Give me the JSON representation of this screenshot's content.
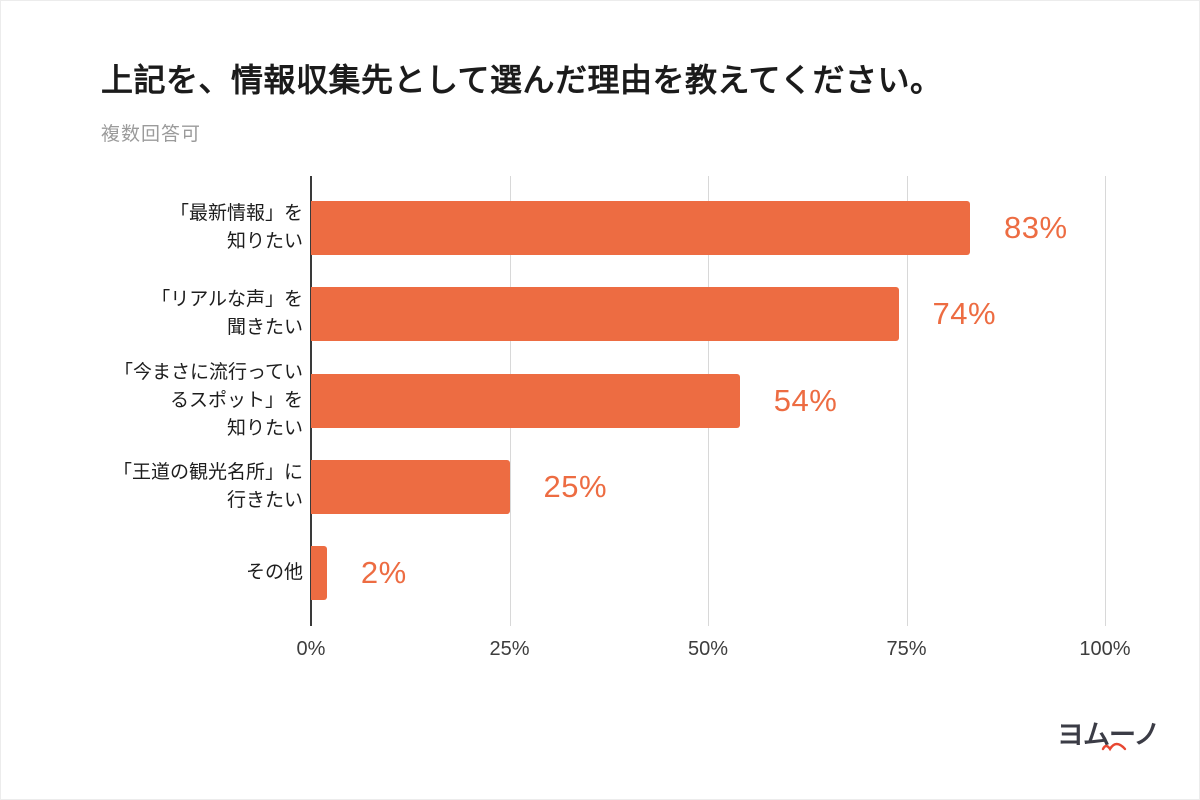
{
  "page": {
    "title": "上記を、情報収集先として選んだ理由を教えてください。",
    "subtitle": "複数回答可"
  },
  "chart_data": {
    "type": "bar",
    "orientation": "horizontal",
    "title": "上記を、情報収集先として選んだ理由を教えてください。",
    "subtitle": "複数回答可",
    "categories": [
      "「最新情報」を知りたい",
      "「リアルな声」を聞きたい",
      "「今まさに流行っているスポット」を知りたい",
      "「王道の観光名所」に行きたい",
      "その他"
    ],
    "category_lines": [
      [
        "「最新情報」を",
        "知りたい"
      ],
      [
        "「リアルな声」を",
        "聞きたい"
      ],
      [
        "「今まさに流行ってい",
        "るスポット」を",
        "知りたい"
      ],
      [
        "「王道の観光名所」に",
        "行きたい"
      ],
      [
        "その他"
      ]
    ],
    "values": [
      83,
      74,
      54,
      25,
      2
    ],
    "value_labels": [
      "83%",
      "74%",
      "54%",
      "25%",
      "2%"
    ],
    "x_ticks": [
      "0%",
      "25%",
      "50%",
      "75%",
      "100%"
    ],
    "x_tick_values": [
      0,
      25,
      50,
      75,
      100
    ],
    "xlim": [
      0,
      100
    ],
    "grid": true,
    "legend": false,
    "bar_color": "#ED6C42",
    "value_label_color": "#ED6C42",
    "gridline_color": "#d8d8d8",
    "axis_line_color": "#3a3a3a"
  },
  "footer": {
    "logo_text": "ヨムーノ",
    "logo_text_color": "#3b3c46",
    "logo_accent_color": "#E84732"
  }
}
